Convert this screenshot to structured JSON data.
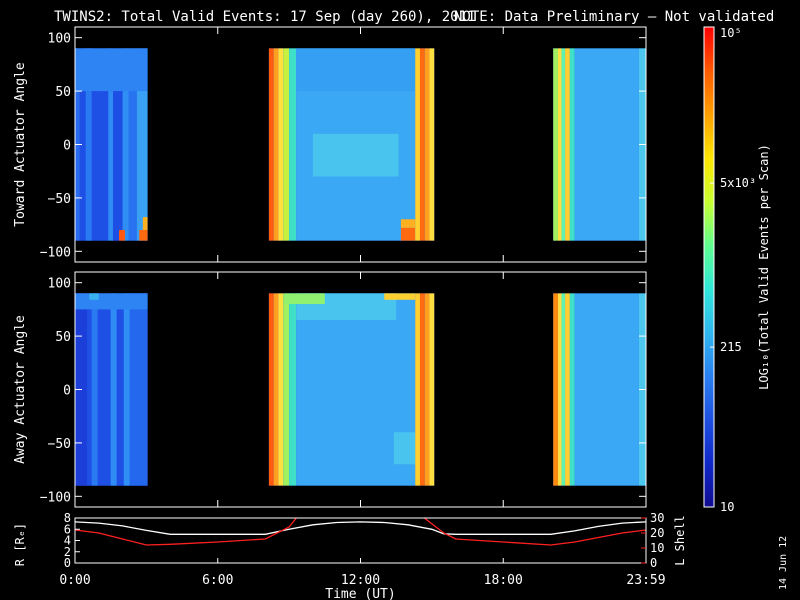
{
  "title": {
    "main": "TWINS2: Total Valid Events: 17 Sep (day 260), 2011",
    "note": "NOTE: Data Preliminary – Not validated",
    "note_color": "#ff2020"
  },
  "footer_date": "14 Jun 12",
  "colors": {
    "background": "#000000",
    "axes": "#ffffff",
    "r_line": "#ffffff",
    "lshell_line": "#ff2020"
  },
  "chart_data": [
    {
      "type": "heatmap",
      "id": "toward",
      "ylabel": "Toward Actuator Angle",
      "xlim": [
        0,
        24
      ],
      "ylim": [
        -110,
        110
      ],
      "yticks": [
        100,
        50,
        0,
        -50,
        -100
      ],
      "yticklabels": [
        "100",
        "50",
        "0",
        "−50",
        "−100"
      ],
      "data_segments": [
        {
          "t_start": 0.0,
          "t_end": 3.05,
          "angle_min": -90,
          "angle_max": 90
        },
        {
          "t_start": 8.15,
          "t_end": 15.1,
          "angle_min": -90,
          "angle_max": 90
        },
        {
          "t_start": 20.1,
          "t_end": 24.0,
          "angle_min": -90,
          "angle_max": 90
        }
      ],
      "bands": [
        {
          "t0": 0.0,
          "t1": 0.2,
          "a0": -90,
          "a1": 90,
          "color": "#2a6cf0"
        },
        {
          "t0": 0.2,
          "t1": 1.4,
          "a0": -90,
          "a1": 90,
          "color": "#1f50e6"
        },
        {
          "t0": 0.45,
          "t1": 0.7,
          "a0": -90,
          "a1": 90,
          "color": "#2a7af2"
        },
        {
          "t0": 1.4,
          "t1": 1.6,
          "a0": -90,
          "a1": 90,
          "color": "#2f8cf5"
        },
        {
          "t0": 1.6,
          "t1": 2.0,
          "a0": -90,
          "a1": 90,
          "color": "#1e4fe4"
        },
        {
          "t0": 2.0,
          "t1": 2.25,
          "a0": -90,
          "a1": 90,
          "color": "#2f8ff5"
        },
        {
          "t0": 2.25,
          "t1": 2.6,
          "a0": -90,
          "a1": 90,
          "color": "#2873ef"
        },
        {
          "t0": 2.6,
          "t1": 3.05,
          "a0": -90,
          "a1": 90,
          "color": "#3aa0f4"
        },
        {
          "t0": 1.85,
          "t1": 2.1,
          "a0": -90,
          "a1": -80,
          "color": "#ff5a10"
        },
        {
          "t0": 2.7,
          "t1": 3.05,
          "a0": -90,
          "a1": -80,
          "color": "#ff6a10"
        },
        {
          "t0": 2.85,
          "t1": 3.05,
          "a0": -80,
          "a1": -68,
          "color": "#ffb020"
        },
        {
          "t0": 0.0,
          "t1": 3.05,
          "a0": 50,
          "a1": 90,
          "color": "#2f84f3"
        },
        {
          "t0": 8.15,
          "t1": 8.35,
          "a0": -90,
          "a1": 90,
          "color": "#ff5a10"
        },
        {
          "t0": 8.35,
          "t1": 8.55,
          "a0": -90,
          "a1": 90,
          "color": "#ffa020"
        },
        {
          "t0": 8.55,
          "t1": 8.75,
          "a0": -90,
          "a1": 90,
          "color": "#ffe040"
        },
        {
          "t0": 8.75,
          "t1": 9.0,
          "a0": -90,
          "a1": 90,
          "color": "#c8f040"
        },
        {
          "t0": 9.0,
          "t1": 9.3,
          "a0": -90,
          "a1": 90,
          "color": "#40e0c8"
        },
        {
          "t0": 9.3,
          "t1": 14.3,
          "a0": -90,
          "a1": 90,
          "color": "#3aa8f4"
        },
        {
          "t0": 10.0,
          "t1": 13.6,
          "a0": -30,
          "a1": 10,
          "color": "#48c4ee"
        },
        {
          "t0": 9.3,
          "t1": 14.3,
          "a0": 50,
          "a1": 90,
          "color": "#35a0f3"
        },
        {
          "t0": 13.7,
          "t1": 14.3,
          "a0": -90,
          "a1": -78,
          "color": "#ff6a10"
        },
        {
          "t0": 13.7,
          "t1": 14.3,
          "a0": -78,
          "a1": -70,
          "color": "#ffb020"
        },
        {
          "t0": 14.3,
          "t1": 14.5,
          "a0": -90,
          "a1": 90,
          "color": "#ffd030"
        },
        {
          "t0": 14.5,
          "t1": 14.7,
          "a0": -90,
          "a1": 90,
          "color": "#ff6a10"
        },
        {
          "t0": 14.7,
          "t1": 14.9,
          "a0": -90,
          "a1": 90,
          "color": "#ffa020"
        },
        {
          "t0": 14.9,
          "t1": 15.1,
          "a0": -90,
          "a1": 90,
          "color": "#ffe040"
        },
        {
          "t0": 20.1,
          "t1": 20.3,
          "a0": -90,
          "a1": 90,
          "color": "#a0f060"
        },
        {
          "t0": 20.3,
          "t1": 20.45,
          "a0": -90,
          "a1": 90,
          "color": "#ffe040"
        },
        {
          "t0": 20.45,
          "t1": 20.6,
          "a0": -90,
          "a1": 90,
          "color": "#60f0b0"
        },
        {
          "t0": 20.6,
          "t1": 20.8,
          "a0": -90,
          "a1": 90,
          "color": "#ffd030"
        },
        {
          "t0": 20.8,
          "t1": 21.0,
          "a0": -90,
          "a1": 90,
          "color": "#40e0c8"
        },
        {
          "t0": 21.0,
          "t1": 23.7,
          "a0": -90,
          "a1": 90,
          "color": "#3aa8f4"
        },
        {
          "t0": 23.7,
          "t1": 24.0,
          "a0": -90,
          "a1": 90,
          "color": "#4cc8ee"
        }
      ]
    },
    {
      "type": "heatmap",
      "id": "away",
      "ylabel": "Away Actuator Angle",
      "xlim": [
        0,
        24
      ],
      "ylim": [
        -110,
        110
      ],
      "yticks": [
        100,
        50,
        0,
        -50,
        -100
      ],
      "yticklabels": [
        "100",
        "50",
        "0",
        "−50",
        "−100"
      ],
      "data_segments": [
        {
          "t_start": 0.0,
          "t_end": 3.05,
          "angle_min": -90,
          "angle_max": 90
        },
        {
          "t_start": 8.15,
          "t_end": 15.1,
          "angle_min": -90,
          "angle_max": 90
        },
        {
          "t_start": 20.1,
          "t_end": 24.0,
          "angle_min": -90,
          "angle_max": 90
        }
      ],
      "bands": [
        {
          "t0": 0.0,
          "t1": 3.05,
          "a0": -90,
          "a1": 90,
          "color": "#1f50e6"
        },
        {
          "t0": 0.0,
          "t1": 0.5,
          "a0": -90,
          "a1": 90,
          "color": "#1b3fd8"
        },
        {
          "t0": 0.7,
          "t1": 0.95,
          "a0": -90,
          "a1": 90,
          "color": "#2a7af2"
        },
        {
          "t0": 1.5,
          "t1": 1.75,
          "a0": -90,
          "a1": 90,
          "color": "#2f8cf5"
        },
        {
          "t0": 2.05,
          "t1": 2.3,
          "a0": -90,
          "a1": 90,
          "color": "#2f8ff5"
        },
        {
          "t0": 2.3,
          "t1": 3.05,
          "a0": -90,
          "a1": 90,
          "color": "#2468ee"
        },
        {
          "t0": 0.0,
          "t1": 3.05,
          "a0": 75,
          "a1": 90,
          "color": "#2f84f3"
        },
        {
          "t0": 0.6,
          "t1": 1.0,
          "a0": 84,
          "a1": 90,
          "color": "#3ab0f0"
        },
        {
          "t0": 8.15,
          "t1": 8.35,
          "a0": -90,
          "a1": 90,
          "color": "#ff5a10"
        },
        {
          "t0": 8.35,
          "t1": 8.55,
          "a0": -90,
          "a1": 90,
          "color": "#ffa020"
        },
        {
          "t0": 8.55,
          "t1": 8.75,
          "a0": -90,
          "a1": 90,
          "color": "#ffe040"
        },
        {
          "t0": 8.75,
          "t1": 9.0,
          "a0": -90,
          "a1": 90,
          "color": "#a0f060"
        },
        {
          "t0": 9.0,
          "t1": 9.3,
          "a0": -90,
          "a1": 90,
          "color": "#40e0c8"
        },
        {
          "t0": 9.3,
          "t1": 14.3,
          "a0": -90,
          "a1": 90,
          "color": "#3aa8f4"
        },
        {
          "t0": 9.3,
          "t1": 13.5,
          "a0": 65,
          "a1": 90,
          "color": "#48c4ee"
        },
        {
          "t0": 8.8,
          "t1": 10.5,
          "a0": 80,
          "a1": 90,
          "color": "#90f070"
        },
        {
          "t0": 13.4,
          "t1": 14.3,
          "a0": -70,
          "a1": -40,
          "color": "#48c4ee"
        },
        {
          "t0": 13.0,
          "t1": 14.3,
          "a0": 84,
          "a1": 90,
          "color": "#ffd030"
        },
        {
          "t0": 14.3,
          "t1": 14.5,
          "a0": -90,
          "a1": 90,
          "color": "#ffd030"
        },
        {
          "t0": 14.5,
          "t1": 14.7,
          "a0": -90,
          "a1": 90,
          "color": "#ff6a10"
        },
        {
          "t0": 14.7,
          "t1": 14.9,
          "a0": -90,
          "a1": 90,
          "color": "#ffa020"
        },
        {
          "t0": 14.9,
          "t1": 15.1,
          "a0": -90,
          "a1": 90,
          "color": "#ffe040"
        },
        {
          "t0": 20.1,
          "t1": 20.3,
          "a0": -90,
          "a1": 90,
          "color": "#ff8a10"
        },
        {
          "t0": 20.3,
          "t1": 20.45,
          "a0": -90,
          "a1": 90,
          "color": "#ffe040"
        },
        {
          "t0": 20.45,
          "t1": 20.6,
          "a0": -90,
          "a1": 90,
          "color": "#60f0b0"
        },
        {
          "t0": 20.6,
          "t1": 20.8,
          "a0": -90,
          "a1": 90,
          "color": "#ffd030"
        },
        {
          "t0": 20.8,
          "t1": 21.0,
          "a0": -90,
          "a1": 90,
          "color": "#40e0c8"
        },
        {
          "t0": 21.0,
          "t1": 23.7,
          "a0": -90,
          "a1": 90,
          "color": "#3aa8f4"
        },
        {
          "t0": 23.7,
          "t1": 24.0,
          "a0": -90,
          "a1": 90,
          "color": "#4cc8ee"
        }
      ]
    },
    {
      "type": "line",
      "id": "orbit",
      "ylabel_left": "R [Rₑ]",
      "ylabel_right": "L Shell",
      "xlabel": "Time (UT)",
      "xlim": [
        0,
        24
      ],
      "xticks": [
        0,
        6,
        12,
        18,
        24
      ],
      "xticklabels": [
        "0:00",
        "6:00",
        "12:00",
        "18:00",
        "23:59"
      ],
      "ylim_left": [
        0,
        8
      ],
      "yticks_left": [
        8,
        6,
        4,
        2,
        0
      ],
      "yticklabels_left": [
        "8",
        "6",
        "4",
        "2",
        "0"
      ],
      "ylim_right": [
        0,
        30
      ],
      "yticks_right": [
        30,
        20,
        10,
        0
      ],
      "yticklabels_right": [
        "30",
        "20",
        "10",
        "0"
      ],
      "series": [
        {
          "axis": "left",
          "color": "#ffffff",
          "x": [
            0,
            1,
            2,
            3,
            4,
            5,
            6,
            7,
            8,
            9,
            10,
            11,
            12,
            13,
            14,
            15,
            15.5,
            16,
            18,
            20,
            21,
            22,
            23,
            24
          ],
          "y": [
            7.3,
            7.1,
            6.6,
            5.8,
            5.1,
            5.1,
            5.1,
            5.1,
            5.1,
            6.0,
            6.8,
            7.2,
            7.3,
            7.2,
            6.8,
            6.0,
            5.2,
            5.1,
            5.1,
            5.1,
            5.7,
            6.5,
            7.1,
            7.3
          ]
        },
        {
          "axis": "right",
          "color": "#ff2020",
          "x": [
            0,
            1,
            2,
            3,
            4,
            6,
            8,
            9,
            9.35
          ],
          "y": [
            22,
            20,
            16,
            12,
            12.5,
            14,
            16,
            24,
            31
          ]
        },
        {
          "axis": "right",
          "color": "#ff2020",
          "x": [
            14.6,
            15.5,
            16,
            18,
            20,
            21,
            22,
            23,
            24
          ],
          "y": [
            31,
            20,
            16,
            14,
            12,
            14,
            17,
            20,
            22
          ]
        }
      ]
    }
  ],
  "colorbar": {
    "label": "LOG₁₀(Total Valid Events per Scan)",
    "scale": "log",
    "range": [
      10,
      100000
    ],
    "ticks": [
      {
        "value": 100000,
        "label": "10⁵"
      },
      {
        "value": 5000,
        "label": "5x10³"
      },
      {
        "value": 215,
        "label": "215"
      },
      {
        "value": 10,
        "label": "10"
      }
    ],
    "stops": [
      "#ff0000",
      "#ff5a00",
      "#ffa000",
      "#ffe600",
      "#c8ff30",
      "#60ff90",
      "#30e8d8",
      "#30b8f0",
      "#2a80f0",
      "#1e50e0",
      "#1028c8",
      "#100c90"
    ]
  }
}
